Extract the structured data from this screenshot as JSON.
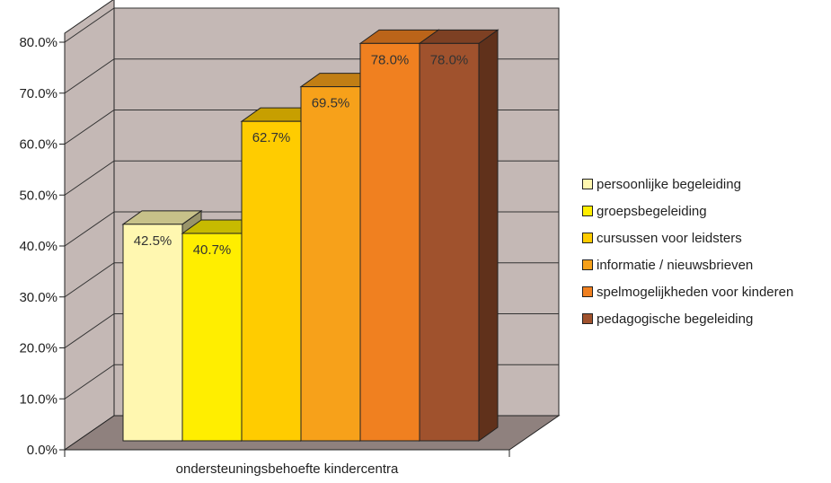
{
  "chart_data": {
    "type": "bar",
    "categories": [
      "ondersteuningsbehoefte kindercentra"
    ],
    "xlabel": "",
    "ylabel": "",
    "ylim": [
      0,
      80
    ],
    "yticks": [
      "0.0%",
      "10.0%",
      "20.0%",
      "30.0%",
      "40.0%",
      "50.0%",
      "60.0%",
      "70.0%",
      "80.0%"
    ],
    "legend_position": "right",
    "grid": true,
    "three_d": true,
    "series": [
      {
        "name": "persoonlijke begeleiding",
        "values": [
          42.5
        ],
        "label": "42.5%",
        "color": "#FFF7B0"
      },
      {
        "name": "groepsbegeleiding",
        "values": [
          40.7
        ],
        "label": "40.7%",
        "color": "#FFEE00"
      },
      {
        "name": "cursussen voor leidsters",
        "values": [
          62.7
        ],
        "label": "62.7%",
        "color": "#FFCC00"
      },
      {
        "name": "informatie / nieuwsbrieven",
        "values": [
          69.5
        ],
        "label": "69.5%",
        "color": "#F7A11A"
      },
      {
        "name": "spelmogelijkheden voor kinderen",
        "values": [
          78.0
        ],
        "label": "78.0%",
        "color": "#F08020"
      },
      {
        "name": "pedagogische begeleiding",
        "values": [
          78.0
        ],
        "label": "78.0%",
        "color": "#A0522D"
      }
    ],
    "colors": {
      "wall": "#C4B8B5",
      "floor": "#8F817E",
      "gridline": "#333333",
      "outline": "#222222"
    }
  }
}
